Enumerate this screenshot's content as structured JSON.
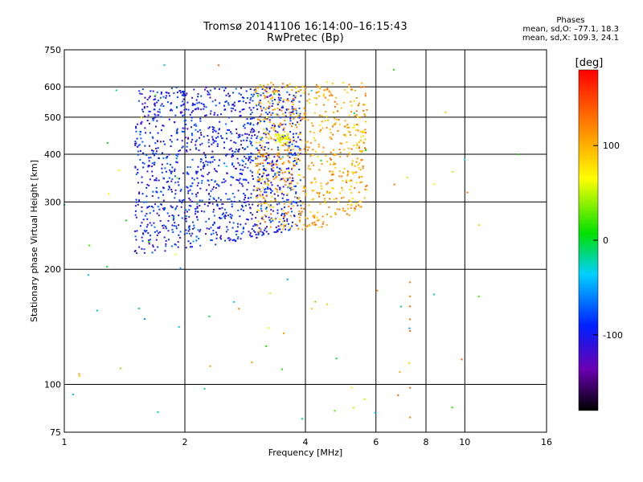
{
  "header": {
    "title": "Tromsø 20141106 16:14:00–16:15:43",
    "subtitle": "RwPretec (Bp)"
  },
  "stats": {
    "heading": "Phases",
    "line1": "mean, sd,O: –77.1, 18.3",
    "line2": "mean, sd,X: 109.3, 24.1"
  },
  "chart_data": {
    "type": "scatter",
    "xlabel": "Frequency [MHz]",
    "ylabel": "Stationary phase Virtual Height [km]",
    "x_scale": "log",
    "y_scale": "log",
    "xlim": [
      1,
      16
    ],
    "ylim": [
      75,
      750
    ],
    "x_ticks": [
      1,
      2,
      4,
      6,
      8,
      10,
      16
    ],
    "y_ticks": [
      75,
      100,
      200,
      300,
      400,
      500,
      600,
      750
    ],
    "colorbar": {
      "label": "[deg]",
      "ticks": [
        100,
        0,
        -100
      ],
      "range": [
        -180,
        180
      ],
      "colormap": "rainbow"
    },
    "grid": true,
    "point_color_encodes": "phase (deg)",
    "series": [
      {
        "description": "dense F-region echoes low freq",
        "x_range": [
          1.5,
          3.9
        ],
        "y_range": [
          220,
          600
        ],
        "phase_mean": -95
      },
      {
        "description": "F2 trace rising",
        "x_range": [
          3.0,
          5.7
        ],
        "y_range": [
          250,
          620
        ],
        "phase_mean": 105
      },
      {
        "description": "cluster near 3.4 MHz 430 km",
        "x": 3.5,
        "y": 440,
        "phase_mean": 60
      },
      {
        "description": "discrete echoes at 7.3 MHz",
        "x": [
          7.3,
          7.3,
          7.3,
          7.3,
          7.3,
          7.3,
          7.3
        ],
        "y": [
          185,
          170,
          160,
          148,
          138,
          98,
          82
        ],
        "phase_mean": 130
      }
    ]
  }
}
